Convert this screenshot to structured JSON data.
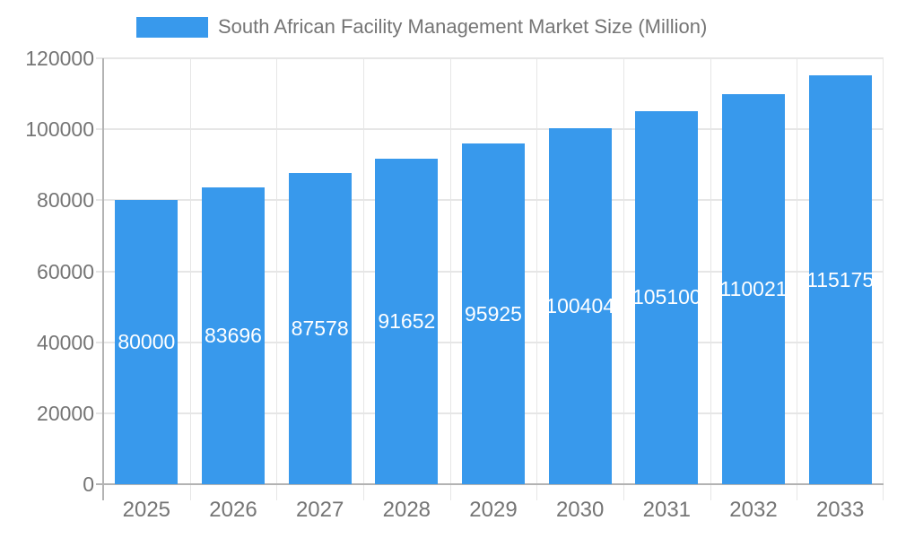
{
  "legend": {
    "label": "South African Facility Management Market Size (Million)"
  },
  "colors": {
    "bar": "#3899EC",
    "bar_label": "#ffffff",
    "axis_line": "#b3b3b3",
    "gridline": "#e6e6e6",
    "text": "#757575",
    "background": "#ffffff"
  },
  "chart_data": {
    "type": "bar",
    "title": "South African Facility Management Market Size (Million)",
    "categories": [
      "2025",
      "2026",
      "2027",
      "2028",
      "2029",
      "2030",
      "2031",
      "2032",
      "2033"
    ],
    "values": [
      80000,
      83696,
      87578,
      91652,
      95925,
      100404,
      105100,
      110021,
      115175
    ],
    "xlabel": "",
    "ylabel": "",
    "ylim": [
      0,
      120000
    ],
    "yticks": [
      0,
      20000,
      40000,
      60000,
      80000,
      100000,
      120000
    ],
    "grid": true,
    "legend_position": "top",
    "bar_labels_inside": true
  }
}
